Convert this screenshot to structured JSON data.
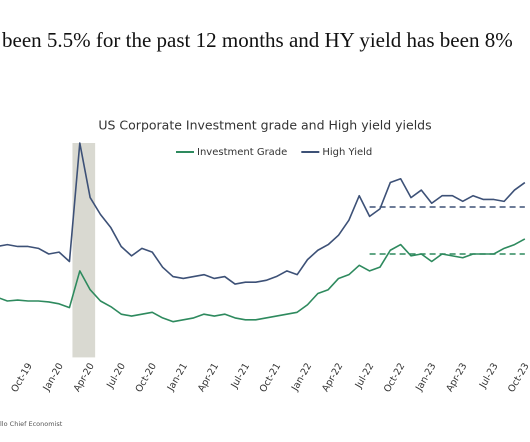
{
  "headline": "been 5.5% for the past 12 months and HY yield has been 8%",
  "footer": "llo Chief Economist",
  "chart_data": {
    "type": "line",
    "title": "US Corporate Investment grade and High yield yields",
    "x": [
      "Jul-19",
      "Aug-19",
      "Sep-19",
      "Oct-19",
      "Nov-19",
      "Dec-19",
      "Jan-20",
      "Feb-20",
      "Mar-20",
      "Apr-20",
      "May-20",
      "Jun-20",
      "Jul-20",
      "Aug-20",
      "Sep-20",
      "Oct-20",
      "Nov-20",
      "Dec-20",
      "Jan-21",
      "Feb-21",
      "Mar-21",
      "Apr-21",
      "May-21",
      "Jun-21",
      "Jul-21",
      "Aug-21",
      "Sep-21",
      "Oct-21",
      "Nov-21",
      "Dec-21",
      "Jan-22",
      "Feb-22",
      "Mar-22",
      "Apr-22",
      "May-22",
      "Jun-22",
      "Jul-22",
      "Aug-22",
      "Sep-22",
      "Oct-22",
      "Nov-22",
      "Dec-22",
      "Jan-23",
      "Feb-23",
      "Mar-23",
      "Apr-23",
      "May-23",
      "Jun-23",
      "Jul-23",
      "Aug-23",
      "Sep-23",
      "Oct-23"
    ],
    "xticks": [
      "Oct-19",
      "Jan-20",
      "Apr-20",
      "Jul-20",
      "Oct-20",
      "Jan-21",
      "Apr-21",
      "Jul-21",
      "Oct-21",
      "Jan-22",
      "Apr-22",
      "Jul-22",
      "Oct-22",
      "Jan-23",
      "Apr-23",
      "Jul-23",
      "Oct-23"
    ],
    "ylim": [
      0,
      13
    ],
    "series": [
      {
        "name": "Investment Grade",
        "color": "#2e8a5e",
        "values": [
          3.2,
          3.0,
          3.05,
          3.0,
          3.0,
          2.95,
          2.85,
          2.65,
          4.6,
          3.6,
          3.0,
          2.7,
          2.3,
          2.2,
          2.3,
          2.4,
          2.1,
          1.9,
          2.0,
          2.1,
          2.3,
          2.2,
          2.3,
          2.1,
          2.0,
          2.0,
          2.1,
          2.2,
          2.3,
          2.4,
          2.8,
          3.4,
          3.6,
          4.2,
          4.4,
          4.9,
          4.6,
          4.8,
          5.7,
          6.0,
          5.4,
          5.5,
          5.1,
          5.5,
          5.4,
          5.3,
          5.5,
          5.5,
          5.5,
          5.8,
          6.0,
          6.3
        ]
      },
      {
        "name": "High Yield",
        "color": "#3d5177",
        "values": [
          5.9,
          6.0,
          5.9,
          5.9,
          5.8,
          5.5,
          5.6,
          5.1,
          11.4,
          8.5,
          7.6,
          6.9,
          5.9,
          5.4,
          5.8,
          5.6,
          4.8,
          4.3,
          4.2,
          4.3,
          4.4,
          4.2,
          4.3,
          3.9,
          4.0,
          4.0,
          4.1,
          4.3,
          4.6,
          4.4,
          5.2,
          5.7,
          6.0,
          6.5,
          7.3,
          8.6,
          7.5,
          7.9,
          9.3,
          9.5,
          8.5,
          8.9,
          8.2,
          8.6,
          8.6,
          8.3,
          8.6,
          8.4,
          8.4,
          8.3,
          8.9,
          9.3
        ]
      }
    ],
    "reference_lines": [
      {
        "value": 5.5,
        "from": "Jul-22",
        "color": "#2e8a5e"
      },
      {
        "value": 8,
        "from": "Jul-22",
        "color": "#3d5177"
      }
    ],
    "shade": {
      "from": "Feb-20",
      "to": "Apr-20",
      "color": "#d9d9d1"
    }
  }
}
